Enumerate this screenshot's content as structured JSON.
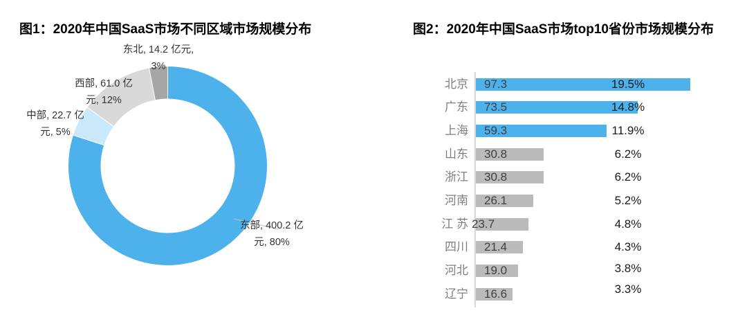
{
  "chart_data": [
    {
      "type": "pie",
      "subtype": "donut",
      "title": "图1：2020年中国SaaS市场不同区域市场规模分布",
      "labels": [
        "东部",
        "中部",
        "西部",
        "东北"
      ],
      "values": [
        400.2,
        22.7,
        61.0,
        14.2
      ],
      "percents": [
        80,
        5,
        12,
        3
      ],
      "unit": "亿元",
      "colors": [
        "#4DB1EC",
        "#C9E8FA",
        "#D9D9D9",
        "#A6A6A6"
      ],
      "donut_hole_ratio": 0.67,
      "start_angle_deg": 0,
      "direction": "clockwise",
      "legend": false,
      "data_labels": [
        [
          "东部, 400.2 亿",
          "元, 80%"
        ],
        [
          "中部, 22.7 亿",
          "元, 5%"
        ],
        [
          "西部, 61.0 亿",
          "元, 12%"
        ],
        [
          "东北, 14.2 亿元,",
          "3%"
        ]
      ]
    },
    {
      "type": "bar",
      "orientation": "horizontal",
      "title": "图2：2020年中国SaaS市场top10省份市场规模分布",
      "categories": [
        "北京",
        "广东",
        "上海",
        "山东",
        "浙江",
        "河南",
        "江 苏",
        "四川",
        "河北",
        "辽宁"
      ],
      "values": [
        97.3,
        73.5,
        59.3,
        30.8,
        30.8,
        26.1,
        23.7,
        21.4,
        19.0,
        16.6
      ],
      "value_labels": [
        "97.3",
        "73.5",
        "59.3",
        "30.8",
        "30.8",
        "26.1",
        "23.7",
        "21.4",
        "19.0",
        "16.6"
      ],
      "percent_labels": [
        "19.5%",
        "14.8%",
        "11.9%",
        "6.2%",
        "6.2%",
        "5.2%",
        "4.8%",
        "4.3%",
        "3.8%",
        "3.3%"
      ],
      "highlight_count": 3,
      "bar_color_highlight": "#4DB1EC",
      "bar_color_default": "#BBBBBB",
      "axis_color": "#D9D9D9",
      "xlim": [
        0,
        100
      ],
      "grid": false,
      "legend": false
    }
  ]
}
